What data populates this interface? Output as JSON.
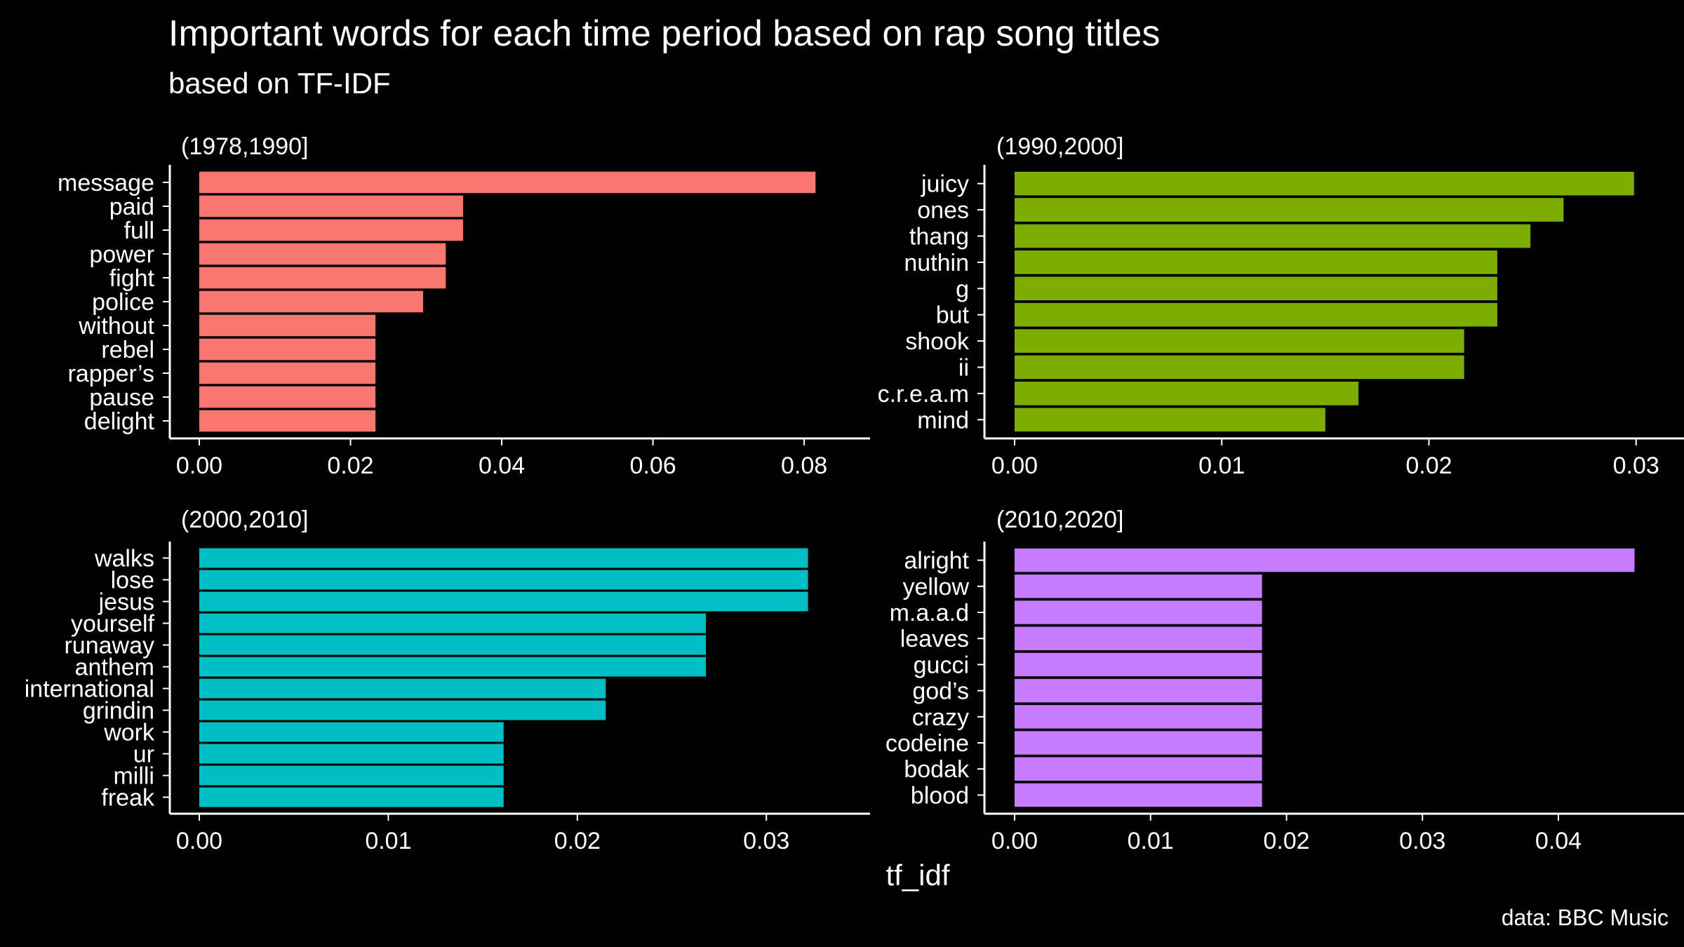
{
  "title": "Important words for each time period based on rap song titles",
  "subtitle": "based on TF-IDF",
  "caption": "data: BBC Music",
  "chart_data": {
    "type": "bar",
    "orientation": "horizontal",
    "facet_layout": "2x2",
    "xlabel": "tf_idf",
    "grid": false,
    "panels": [
      {
        "label": "(1978,1990]",
        "color": "#F8766D",
        "xlim": [
          0,
          0.085
        ],
        "ticks": [
          0.0,
          0.02,
          0.04,
          0.06,
          0.08
        ],
        "tick_labels": [
          "0.00",
          "0.02",
          "0.04",
          "0.06",
          "0.08"
        ],
        "categories": [
          "message",
          "paid",
          "full",
          "power",
          "fight",
          "police",
          "without",
          "rebel",
          "rapper’s",
          "pause",
          "delight"
        ],
        "values": [
          0.0815,
          0.0349,
          0.0349,
          0.0326,
          0.0326,
          0.0296,
          0.0233,
          0.0233,
          0.0233,
          0.0233,
          0.0233
        ]
      },
      {
        "label": "(1990,2000]",
        "color": "#7CAE00",
        "xlim": [
          0,
          0.0315
        ],
        "ticks": [
          0.0,
          0.01,
          0.02,
          0.03
        ],
        "tick_labels": [
          "0.00",
          "0.01",
          "0.02",
          "0.03"
        ],
        "categories": [
          "juicy",
          "ones",
          "thang",
          "nuthin",
          "g",
          "but",
          "shook",
          "ii",
          "c.r.e.a.m",
          "mind"
        ],
        "values": [
          0.0299,
          0.0265,
          0.0249,
          0.0233,
          0.0233,
          0.0233,
          0.0217,
          0.0217,
          0.0166,
          0.015
        ]
      },
      {
        "label": "(2000,2010]",
        "color": "#00BFC4",
        "xlim": [
          0,
          0.034
        ],
        "ticks": [
          0.0,
          0.01,
          0.02,
          0.03
        ],
        "tick_labels": [
          "0.00",
          "0.01",
          "0.02",
          "0.03"
        ],
        "categories": [
          "walks",
          "lose",
          "jesus",
          "yourself",
          "runaway",
          "anthem",
          "international",
          "grindin",
          "work",
          "ur",
          "milli",
          "freak"
        ],
        "values": [
          0.0322,
          0.0322,
          0.0322,
          0.0268,
          0.0268,
          0.0268,
          0.0215,
          0.0215,
          0.0161,
          0.0161,
          0.0161,
          0.0161
        ]
      },
      {
        "label": "(2010,2020]",
        "color": "#C77CFF",
        "xlim": [
          0,
          0.048
        ],
        "ticks": [
          0.0,
          0.01,
          0.02,
          0.03,
          0.04
        ],
        "tick_labels": [
          "0.00",
          "0.01",
          "0.02",
          "0.03",
          "0.04"
        ],
        "categories": [
          "alright",
          "yellow",
          "m.a.a.d",
          "leaves",
          "gucci",
          "god’s",
          "crazy",
          "codeine",
          "bodak",
          "blood"
        ],
        "values": [
          0.0456,
          0.0182,
          0.0182,
          0.0182,
          0.0182,
          0.0182,
          0.0182,
          0.0182,
          0.0182,
          0.0182
        ]
      }
    ]
  }
}
